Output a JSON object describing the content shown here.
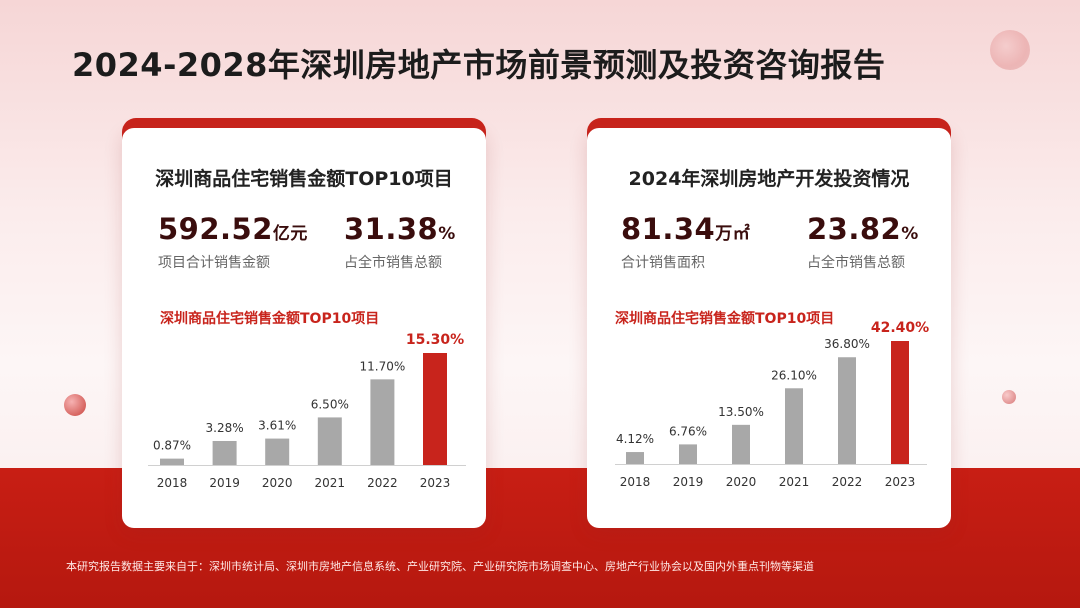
{
  "page_title": "2024-2028年深圳房地产市场前景预测及投资咨询报告",
  "cards": [
    {
      "title": "深圳商品住宅销售金额TOP10项目",
      "stats": [
        {
          "value": "592.52",
          "unit": "亿元",
          "label": "项目合计销售金额"
        },
        {
          "value": "31.38",
          "unit": "%",
          "label": "占全市销售总额"
        }
      ]
    },
    {
      "title": "2024年深圳房地产开发投资情况",
      "stats": [
        {
          "value": "81.34",
          "unit": "万㎡",
          "label": "合计销售面积"
        },
        {
          "value": "23.82",
          "unit": "%",
          "label": "占全市销售总额"
        }
      ]
    }
  ],
  "chart_data": [
    {
      "type": "bar",
      "title": "深圳商品住宅销售金额TOP10项目",
      "categories": [
        "2018",
        "2019",
        "2020",
        "2021",
        "2022",
        "2023"
      ],
      "values": [
        0.87,
        3.28,
        3.61,
        6.5,
        11.7,
        15.3
      ],
      "value_labels": [
        "0.87%",
        "3.28%",
        "3.61%",
        "6.50%",
        "11.70%",
        "15.30%"
      ],
      "highlight_index": 5,
      "bar_color": "#a8a8a8",
      "highlight_color": "#c8241c",
      "grid": false
    },
    {
      "type": "bar",
      "title": "深圳商品住宅销售金额TOP10项目",
      "categories": [
        "2018",
        "2019",
        "2020",
        "2021",
        "2022",
        "2023"
      ],
      "values": [
        4.12,
        6.76,
        13.5,
        26.1,
        36.8,
        42.4
      ],
      "value_labels": [
        "4.12%",
        "6.76%",
        "13.50%",
        "26.10%",
        "36.80%",
        "42.40%"
      ],
      "highlight_index": 5,
      "bar_color": "#a8a8a8",
      "highlight_color": "#c8241c",
      "grid": false
    }
  ],
  "footnote": "本研究报告数据主要来自于：深圳市统计局、深圳市房地产信息系统、产业研究院、产业研究院市场调查中心、房地产行业协会以及国内外重点刊物等渠道",
  "colors": {
    "accent": "#c8241c",
    "bar_gray": "#a8a8a8",
    "title": "#1c1c1c"
  }
}
